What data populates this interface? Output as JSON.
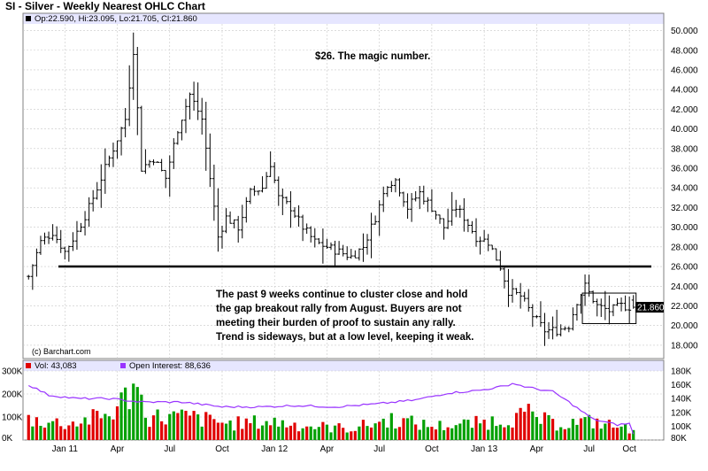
{
  "colors": {
    "price_bar": "#000000",
    "support_line": "#000000",
    "vol_up": "#00a000",
    "vol_down": "#e00000",
    "open_interest": "#9933ff",
    "header_band": "#e6e6ff",
    "grid": "#c8c8c8"
  },
  "chart_data": [
    {
      "type": "ohlc",
      "title": "SI - Silver - Weekly Nearest OHLC Chart",
      "header": {
        "label": "Op:22.590, Hi:23.095, Lo:21.705, Cl:21.860",
        "open": 22.59,
        "high": 23.095,
        "low": 21.705,
        "close": 21.86
      },
      "ylim": [
        17,
        50.5
      ],
      "y_ticks": [
        "18.000",
        "20.000",
        "22.000",
        "24.000",
        "26.000",
        "28.000",
        "30.000",
        "32.000",
        "34.000",
        "36.000",
        "38.000",
        "40.000",
        "42.000",
        "44.000",
        "46.000",
        "48.000",
        "50.000"
      ],
      "x_ticks": [
        "Jan 11",
        "Apr",
        "Jul",
        "Oct",
        "Jan 12",
        "Apr",
        "Jul",
        "Oct",
        "Jan 13",
        "Apr",
        "Jul",
        "Oct"
      ],
      "last_price_label": "21.860",
      "last_price": 21.86,
      "support_level": 26.0,
      "range_box": {
        "week_start": 138,
        "week_end": 150,
        "low": 20.2,
        "high": 23.3
      },
      "credit": "(c) Barchart.com",
      "annotations": {
        "magic": "$26.  The magic number.",
        "note_lines": [
          "The past 9 weeks continue to cluster close and hold",
          "the gap breakout rally from August.  Buyers are not",
          "meeting their burden of proof to sustain any rally.",
          "Trend is sideways, but at a low level, keeping it weak."
        ]
      },
      "weekly_close_anchors": [
        [
          0,
          25.0
        ],
        [
          3,
          28.5
        ],
        [
          6,
          29.5
        ],
        [
          9,
          27.5
        ],
        [
          12,
          29.5
        ],
        [
          15,
          32.0
        ],
        [
          18,
          35.0
        ],
        [
          21,
          38.0
        ],
        [
          24,
          41.0
        ],
        [
          26,
          48.0
        ],
        [
          28,
          36.0
        ],
        [
          31,
          37.0
        ],
        [
          34,
          35.0
        ],
        [
          37,
          40.0
        ],
        [
          40,
          43.5
        ],
        [
          43,
          41.0
        ],
        [
          45,
          35.0
        ],
        [
          47,
          29.0
        ],
        [
          49,
          31.0
        ],
        [
          52,
          30.0
        ],
        [
          55,
          33.5
        ],
        [
          58,
          34.0
        ],
        [
          60,
          36.5
        ],
        [
          62,
          33.0
        ],
        [
          65,
          32.0
        ],
        [
          68,
          30.0
        ],
        [
          71,
          28.5
        ],
        [
          74,
          28.0
        ],
        [
          77,
          27.5
        ],
        [
          80,
          27.0
        ],
        [
          83,
          28.0
        ],
        [
          86,
          31.0
        ],
        [
          89,
          34.5
        ],
        [
          91,
          34.8
        ],
        [
          94,
          32.0
        ],
        [
          97,
          33.5
        ],
        [
          100,
          32.0
        ],
        [
          103,
          30.0
        ],
        [
          106,
          32.0
        ],
        [
          108,
          31.0
        ],
        [
          111,
          29.0
        ],
        [
          114,
          28.5
        ],
        [
          117,
          26.0
        ],
        [
          119,
          23.5
        ],
        [
          122,
          23.0
        ],
        [
          125,
          21.0
        ],
        [
          128,
          19.5
        ],
        [
          131,
          19.5
        ],
        [
          134,
          20.0
        ],
        [
          136,
          22.5
        ],
        [
          138,
          24.0
        ],
        [
          141,
          22.0
        ],
        [
          144,
          21.5
        ],
        [
          147,
          22.0
        ],
        [
          150,
          21.86
        ]
      ]
    },
    {
      "type": "bar+line",
      "title": "Volume / Open Interest",
      "series": [
        {
          "name": "Vol",
          "label": "Vol: 43,083",
          "last": 43083
        },
        {
          "name": "Open Interest",
          "label": "Open Interest: 88,636",
          "last": 88636
        }
      ],
      "vol_ticks": [
        "0K",
        "100K",
        "200K",
        "300K"
      ],
      "vol_range": [
        0,
        300000
      ],
      "oi_ticks": [
        "80K",
        "100K",
        "120K",
        "140K",
        "160K",
        "180K"
      ],
      "oi_range": [
        80000,
        180000
      ],
      "vol_anchors": [
        [
          0,
          90000
        ],
        [
          10,
          70000
        ],
        [
          20,
          110000
        ],
        [
          24,
          180000
        ],
        [
          26,
          240000
        ],
        [
          30,
          100000
        ],
        [
          40,
          100000
        ],
        [
          50,
          70000
        ],
        [
          60,
          80000
        ],
        [
          70,
          60000
        ],
        [
          80,
          50000
        ],
        [
          90,
          90000
        ],
        [
          100,
          60000
        ],
        [
          110,
          70000
        ],
        [
          118,
          90000
        ],
        [
          124,
          110000
        ],
        [
          130,
          70000
        ],
        [
          140,
          80000
        ],
        [
          150,
          43083
        ]
      ],
      "oi_anchors": [
        [
          0,
          160000
        ],
        [
          5,
          145000
        ],
        [
          12,
          140000
        ],
        [
          20,
          140000
        ],
        [
          28,
          135000
        ],
        [
          38,
          135000
        ],
        [
          48,
          128000
        ],
        [
          58,
          128000
        ],
        [
          66,
          130000
        ],
        [
          76,
          128000
        ],
        [
          86,
          132000
        ],
        [
          96,
          138000
        ],
        [
          104,
          148000
        ],
        [
          112,
          152000
        ],
        [
          118,
          158000
        ],
        [
          120,
          162000
        ],
        [
          124,
          156000
        ],
        [
          130,
          150000
        ],
        [
          134,
          135000
        ],
        [
          140,
          110000
        ],
        [
          146,
          102000
        ],
        [
          149,
          104000
        ],
        [
          150,
          88636
        ]
      ]
    }
  ]
}
